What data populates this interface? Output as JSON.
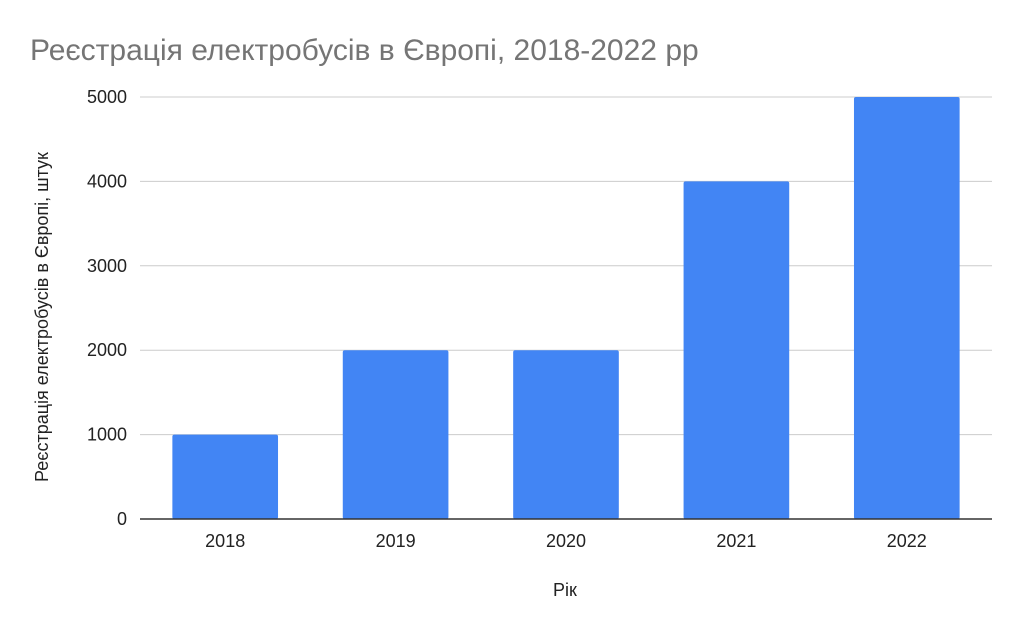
{
  "chart_data": {
    "type": "bar",
    "title": "Реєстрація електробусів в Європі, 2018-2022 рр",
    "xlabel": "Рік",
    "ylabel": "Реєстрація електробусів в Європі, штук",
    "categories": [
      "2018",
      "2019",
      "2020",
      "2021",
      "2022"
    ],
    "values": [
      1000,
      2000,
      2000,
      4000,
      5000
    ],
    "ylim": [
      0,
      5000
    ],
    "yticks": [
      0,
      1000,
      2000,
      3000,
      4000,
      5000
    ],
    "grid": true,
    "legend": "none",
    "colors": {
      "bar": "#4285f4",
      "title": "#757575",
      "grid": "#cccccc",
      "axis": "#333333",
      "text": "#222222"
    }
  }
}
